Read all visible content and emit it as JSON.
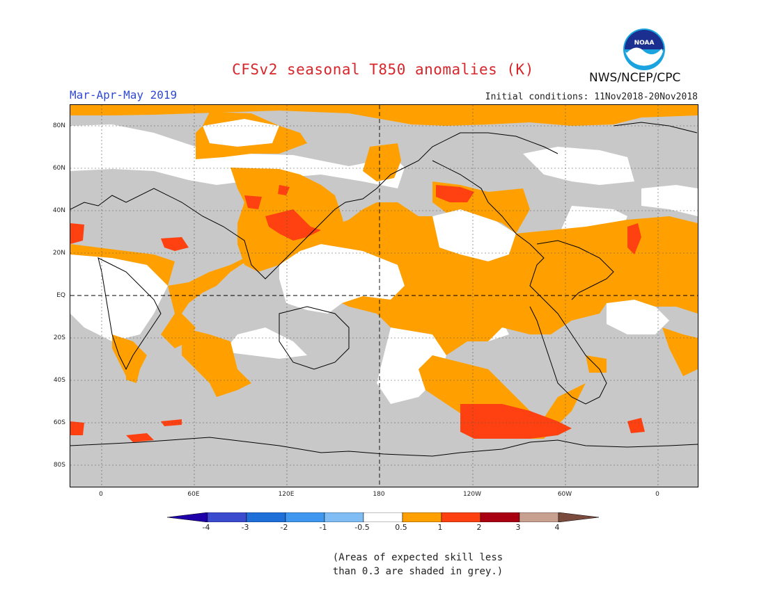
{
  "header": {
    "title": "CFSv2 seasonal T850 anomalies (K)",
    "period": "Mar-Apr-May 2019",
    "initial_conditions": "Initial conditions: 11Nov2018-20Nov2018",
    "org": "NWS/NCEP/CPC",
    "logo_text": "NOAA"
  },
  "map": {
    "lat_labels": [
      "80N",
      "60N",
      "40N",
      "20N",
      "EQ",
      "20S",
      "40S",
      "60S",
      "80S"
    ],
    "lon_labels": [
      "0",
      "60E",
      "120E",
      "180",
      "120W",
      "60W",
      "0"
    ],
    "colors": {
      "skill_grey": "#c8c8c8",
      "near_normal": "#ffffff",
      "warm_1": "#ffa000",
      "warm_2": "#ff4010",
      "warm_3": "#e02010"
    }
  },
  "colorbar": {
    "labels": [
      "-4",
      "-3",
      "-2",
      "-1",
      "-0.5",
      "0.5",
      "1",
      "2",
      "3",
      "4"
    ],
    "colors": [
      "#1f00a8",
      "#3b4bd0",
      "#1e6fd8",
      "#3f97f0",
      "#80bdf5",
      "#ffffff",
      "#ffa000",
      "#ff4010",
      "#a80010",
      "#c8a090",
      "#7a4b3c"
    ]
  },
  "note": {
    "line1": "(Areas of expected skill less",
    "line2": "than 0.3 are shaded in grey.)"
  }
}
